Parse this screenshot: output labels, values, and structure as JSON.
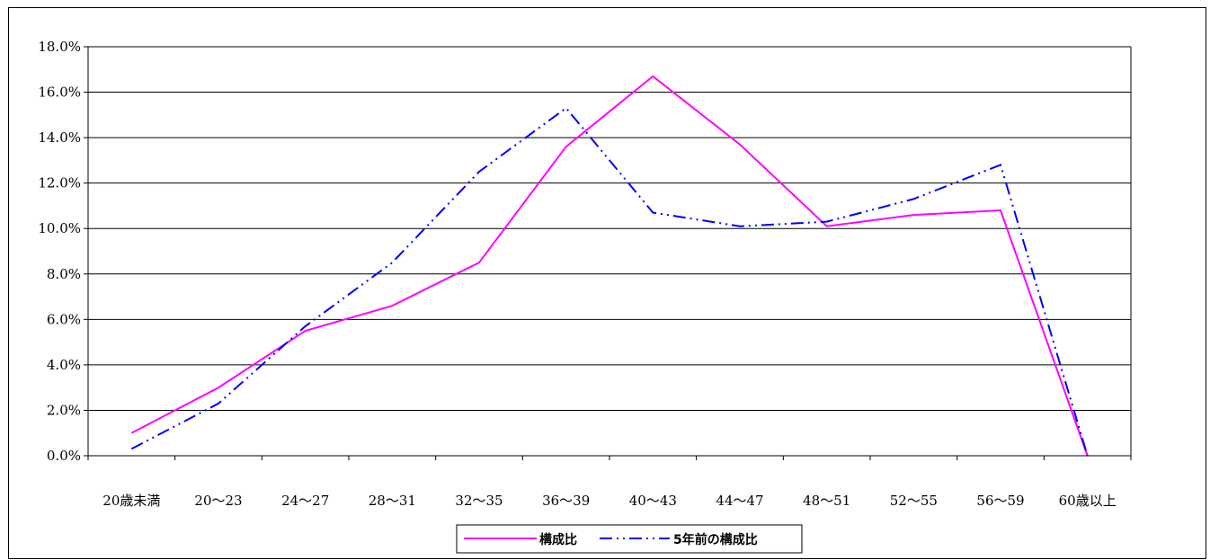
{
  "chart_data": {
    "type": "line",
    "categories": [
      "20歳未満",
      "20～23",
      "24～27",
      "28～31",
      "32～35",
      "36～39",
      "40～43",
      "44～47",
      "48～51",
      "52～55",
      "56～59",
      "60歳以上"
    ],
    "series": [
      {
        "name": "構成比",
        "values": [
          1.0,
          3.0,
          5.5,
          6.6,
          8.5,
          13.6,
          16.7,
          13.7,
          10.1,
          10.6,
          10.8,
          0.0
        ],
        "color": "#ff00ff",
        "line_style": "solid"
      },
      {
        "name": "5年前の構成比",
        "values": [
          0.3,
          2.3,
          5.7,
          8.5,
          12.5,
          15.3,
          10.7,
          10.1,
          10.3,
          11.3,
          12.8,
          0.0
        ],
        "color": "#0000ff",
        "line_style": "dash-dot-dot"
      }
    ],
    "ylim": [
      0,
      18
    ],
    "ytick_step": 2,
    "ytick_labels": [
      "0.0%",
      "2.0%",
      "4.0%",
      "6.0%",
      "8.0%",
      "10.0%",
      "12.0%",
      "14.0%",
      "16.0%",
      "18.0%"
    ],
    "grid": true,
    "legend_position": "bottom-center",
    "title": "",
    "xlabel": "",
    "ylabel": ""
  }
}
